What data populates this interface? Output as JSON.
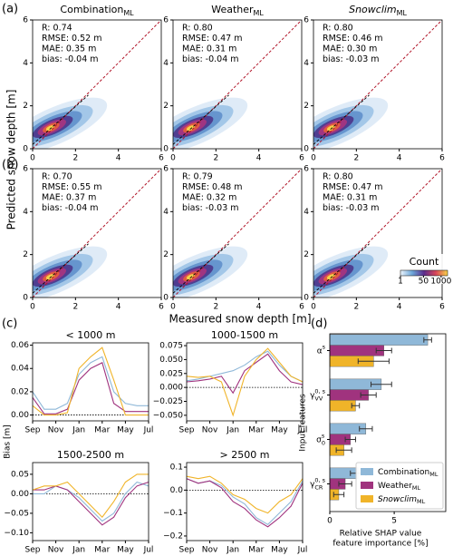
{
  "figure": {
    "panel_labels": [
      "(a)",
      "(b)",
      "(c)",
      "(d)"
    ],
    "ylabel_ab": "Predicted snow depth [m]",
    "xlabel_ab": "Measured snow depth [m]",
    "ylabel_c": "Bias [m]"
  },
  "chart_data": [
    {
      "type": "density",
      "title": {
        "base": "Combination",
        "sub": "ML"
      },
      "stats": [
        "R: 0.74",
        "RMSE: 0.52 m",
        "MAE: 0.35 m",
        "bias: -0.04 m"
      ],
      "xlim": [
        0,
        6
      ],
      "ylim": [
        0,
        6
      ],
      "xticks": [
        0,
        2,
        4,
        6
      ],
      "yticks": [
        0,
        2,
        4,
        6
      ]
    },
    {
      "type": "density",
      "title": {
        "base": "Weather",
        "sub": "ML"
      },
      "stats": [
        "R: 0.80",
        "RMSE: 0.47 m",
        "MAE: 0.31 m",
        "bias: -0.04 m"
      ],
      "xlim": [
        0,
        6
      ],
      "ylim": [
        0,
        6
      ],
      "xticks": [
        0,
        2,
        4,
        6
      ],
      "yticks": [
        0,
        2,
        4,
        6
      ]
    },
    {
      "type": "density",
      "title": {
        "base": "Snowclim",
        "sub": "ML",
        "italic": true
      },
      "stats": [
        "R: 0.80",
        "RMSE: 0.46 m",
        "MAE: 0.30 m",
        "bias: -0.03 m"
      ],
      "xlim": [
        0,
        6
      ],
      "ylim": [
        0,
        6
      ],
      "xticks": [
        0,
        2,
        4,
        6
      ],
      "yticks": [
        0,
        2,
        4,
        6
      ]
    },
    {
      "type": "density",
      "stats": [
        "R: 0.70",
        "RMSE: 0.55 m",
        "MAE: 0.37 m",
        "bias: -0.04 m"
      ],
      "xlim": [
        0,
        6
      ],
      "ylim": [
        0,
        6
      ],
      "xticks": [
        0,
        2,
        4,
        6
      ],
      "yticks": [
        0,
        2,
        4,
        6
      ]
    },
    {
      "type": "density",
      "stats": [
        "R: 0.79",
        "RMSE: 0.48 m",
        "MAE: 0.32 m",
        "bias: -0.03 m"
      ],
      "xlim": [
        0,
        6
      ],
      "ylim": [
        0,
        6
      ],
      "xticks": [
        0,
        2,
        4,
        6
      ],
      "yticks": [
        0,
        2,
        4,
        6
      ]
    },
    {
      "type": "density",
      "stats": [
        "R: 0.80",
        "RMSE: 0.47 m",
        "MAE: 0.31 m",
        "bias: -0.03 m"
      ],
      "xlim": [
        0,
        6
      ],
      "ylim": [
        0,
        6
      ],
      "xticks": [
        0,
        2,
        4,
        6
      ],
      "yticks": [
        0,
        2,
        4,
        6
      ],
      "colorbar": {
        "label": "Count",
        "lim": [
          1,
          3000
        ],
        "log": true,
        "ticks": [
          1,
          50,
          1000
        ]
      }
    },
    {
      "type": "line",
      "title": "< 1000 m",
      "categories": [
        "Sep",
        null,
        "Nov",
        null,
        "Jan",
        null,
        "Mar",
        null,
        "May",
        null,
        "Jul"
      ],
      "ylim": [
        -0.005,
        0.062
      ],
      "yticks": [
        {
          "value": 0,
          "label": "0.00"
        },
        {
          "value": 0.02,
          "label": "0.02"
        },
        {
          "value": 0.04,
          "label": "0.04"
        },
        {
          "value": 0.06,
          "label": "0.06"
        }
      ],
      "series": [
        {
          "color": "#8fb8d8",
          "values": [
            0.02,
            0.005,
            0.005,
            0.01,
            0.035,
            0.045,
            0.05,
            0.02,
            0.01,
            0.008,
            0.008
          ]
        },
        {
          "color": "#a0337e",
          "values": [
            0.015,
            0.001,
            0.001,
            0.005,
            0.03,
            0.04,
            0.045,
            0.01,
            0.003,
            0.003,
            0.003
          ]
        },
        {
          "color": "#f0b429",
          "values": [
            0.008,
            0,
            0,
            0.002,
            0.04,
            0.05,
            0.058,
            0.03,
            0,
            0,
            0
          ]
        }
      ]
    },
    {
      "type": "line",
      "title": "1000-1500 m",
      "categories": [
        "Sep",
        null,
        "Nov",
        null,
        "Jan",
        null,
        "Mar",
        null,
        "May",
        null,
        "Jul"
      ],
      "ylim": [
        -0.06,
        0.08
      ],
      "yticks": [
        {
          "value": -0.05,
          "label": "−0.050"
        },
        {
          "value": -0.025,
          "label": "−0.025"
        },
        {
          "value": 0,
          "label": "0.000"
        },
        {
          "value": 0.025,
          "label": "0.025"
        },
        {
          "value": 0.05,
          "label": "0.050"
        },
        {
          "value": 0.075,
          "label": "0.075"
        }
      ],
      "series": [
        {
          "color": "#8fb8d8",
          "values": [
            0.012,
            0.015,
            0.02,
            0.025,
            0.03,
            0.04,
            0.055,
            0.065,
            0.04,
            0.02,
            0.01
          ]
        },
        {
          "color": "#a0337e",
          "values": [
            0.01,
            0.012,
            0.015,
            0.02,
            -0.01,
            0.03,
            0.045,
            0.06,
            0.03,
            0.01,
            0.005
          ]
        },
        {
          "color": "#f0b429",
          "values": [
            0.02,
            0.018,
            0.02,
            0.01,
            -0.05,
            0.02,
            0.05,
            0.07,
            0.045,
            0.02,
            0.01
          ]
        }
      ]
    },
    {
      "type": "line",
      "title": "1500-2500 m",
      "categories": [
        "Sep",
        null,
        "Nov",
        null,
        "Jan",
        null,
        "Mar",
        null,
        "May",
        null,
        "Jul"
      ],
      "ylim": [
        -0.12,
        0.08
      ],
      "yticks": [
        {
          "value": -0.1,
          "label": "−0.10"
        },
        {
          "value": -0.05,
          "label": "−0.05"
        },
        {
          "value": 0,
          "label": "0.00"
        },
        {
          "value": 0.05,
          "label": "0.05"
        }
      ],
      "series": [
        {
          "color": "#8fb8d8",
          "values": [
            0,
            0,
            0.02,
            0.01,
            -0.01,
            -0.04,
            -0.07,
            -0.05,
            0,
            0.03,
            0.02
          ]
        },
        {
          "color": "#a0337e",
          "values": [
            0.01,
            0.01,
            0.02,
            0.01,
            -0.02,
            -0.05,
            -0.08,
            -0.06,
            -0.01,
            0.02,
            0.03
          ]
        },
        {
          "color": "#f0b429",
          "values": [
            0.01,
            0.02,
            0.02,
            0.03,
            0,
            -0.03,
            -0.06,
            -0.02,
            0.03,
            0.05,
            0.05
          ]
        }
      ]
    },
    {
      "type": "line",
      "title": "> 2500 m",
      "categories": [
        "Sep",
        null,
        "Nov",
        null,
        "Jan",
        null,
        "Mar",
        null,
        "May",
        null,
        "Jul"
      ],
      "ylim": [
        -0.22,
        0.12
      ],
      "yticks": [
        {
          "value": -0.2,
          "label": "−0.2"
        },
        {
          "value": -0.1,
          "label": "−0.1"
        },
        {
          "value": 0,
          "label": "0.0"
        },
        {
          "value": 0.1,
          "label": "0.1"
        }
      ],
      "series": [
        {
          "color": "#8fb8d8",
          "values": [
            0.05,
            0.03,
            0.04,
            0.02,
            -0.03,
            -0.06,
            -0.12,
            -0.15,
            -0.1,
            -0.05,
            0.04
          ]
        },
        {
          "color": "#a0337e",
          "values": [
            0.05,
            0.03,
            0.04,
            0.01,
            -0.05,
            -0.08,
            -0.13,
            -0.16,
            -0.12,
            -0.07,
            0.03
          ]
        },
        {
          "color": "#f0b429",
          "values": [
            0.06,
            0.05,
            0.06,
            0.03,
            -0.02,
            -0.04,
            -0.08,
            -0.1,
            -0.05,
            -0.02,
            0.05
          ]
        }
      ]
    },
    {
      "type": "hbar",
      "ylabel": "Input features",
      "xlabel": [
        "Relative SHAP value",
        "feature importance [%]"
      ],
      "categories": [
        {
          "base": "α",
          "sup": "s"
        },
        {
          "base": "γ",
          "sub": "VV",
          "sup": "0, s"
        },
        {
          "base": "σ",
          "sub": "0",
          "sup": "s"
        },
        {
          "base": "γ",
          "sub": "CR",
          "sup": "0, s"
        }
      ],
      "xlim": [
        0,
        9
      ],
      "xticks": [
        0,
        5
      ],
      "legend": "lower right",
      "series": [
        {
          "name": {
            "base": "Combination",
            "sub": "ML"
          },
          "color": "#8fb8d8",
          "values": [
            7.6,
            4.0,
            2.8,
            2.2
          ],
          "errors": [
            0.3,
            0.8,
            0.5,
            0.6
          ]
        },
        {
          "name": {
            "base": "Weather",
            "sub": "ML"
          },
          "color": "#a0337e",
          "values": [
            4.2,
            3.0,
            1.6,
            1.2
          ],
          "errors": [
            0.6,
            0.6,
            0.4,
            0.5
          ]
        },
        {
          "name": {
            "base": "Snowclim",
            "sub": "ML",
            "italic": true
          },
          "color": "#f0b429",
          "values": [
            3.4,
            2.0,
            1.1,
            0.7
          ],
          "errors": [
            1.2,
            0.3,
            0.6,
            0.4
          ]
        }
      ]
    }
  ]
}
